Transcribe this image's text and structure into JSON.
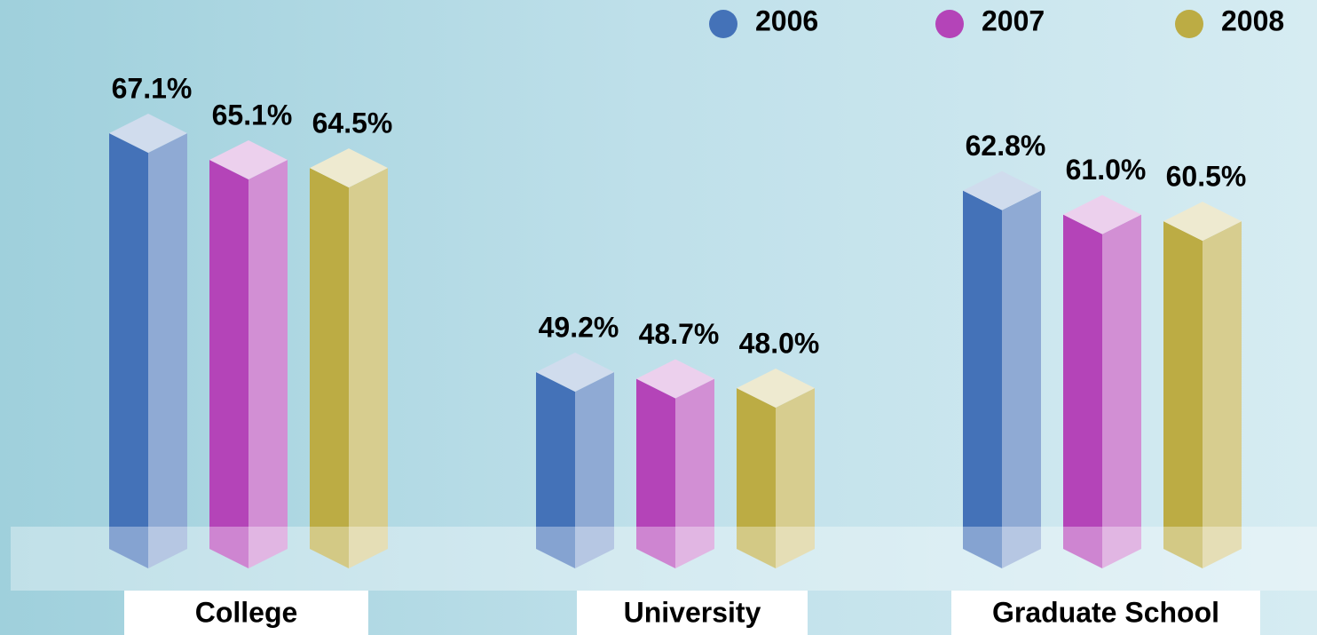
{
  "chart_data": {
    "type": "bar3d",
    "categories": [
      "College",
      "University",
      "Graduate School"
    ],
    "series": [
      {
        "name": "2006",
        "color": "#4472b8",
        "values": [
          67.1,
          49.2,
          62.8
        ],
        "value_labels": [
          "67.1%",
          "49.2%",
          "62.8%"
        ]
      },
      {
        "name": "2007",
        "color": "#b444b8",
        "values": [
          65.1,
          48.7,
          61.0
        ],
        "value_labels": [
          "65.1%",
          "48.7%",
          "61.0%"
        ]
      },
      {
        "name": "2008",
        "color": "#bcac44",
        "values": [
          64.5,
          48.0,
          60.5
        ],
        "value_labels": [
          "64.5%",
          "48.0%",
          "60.5%"
        ]
      }
    ],
    "legend": "top-right"
  }
}
